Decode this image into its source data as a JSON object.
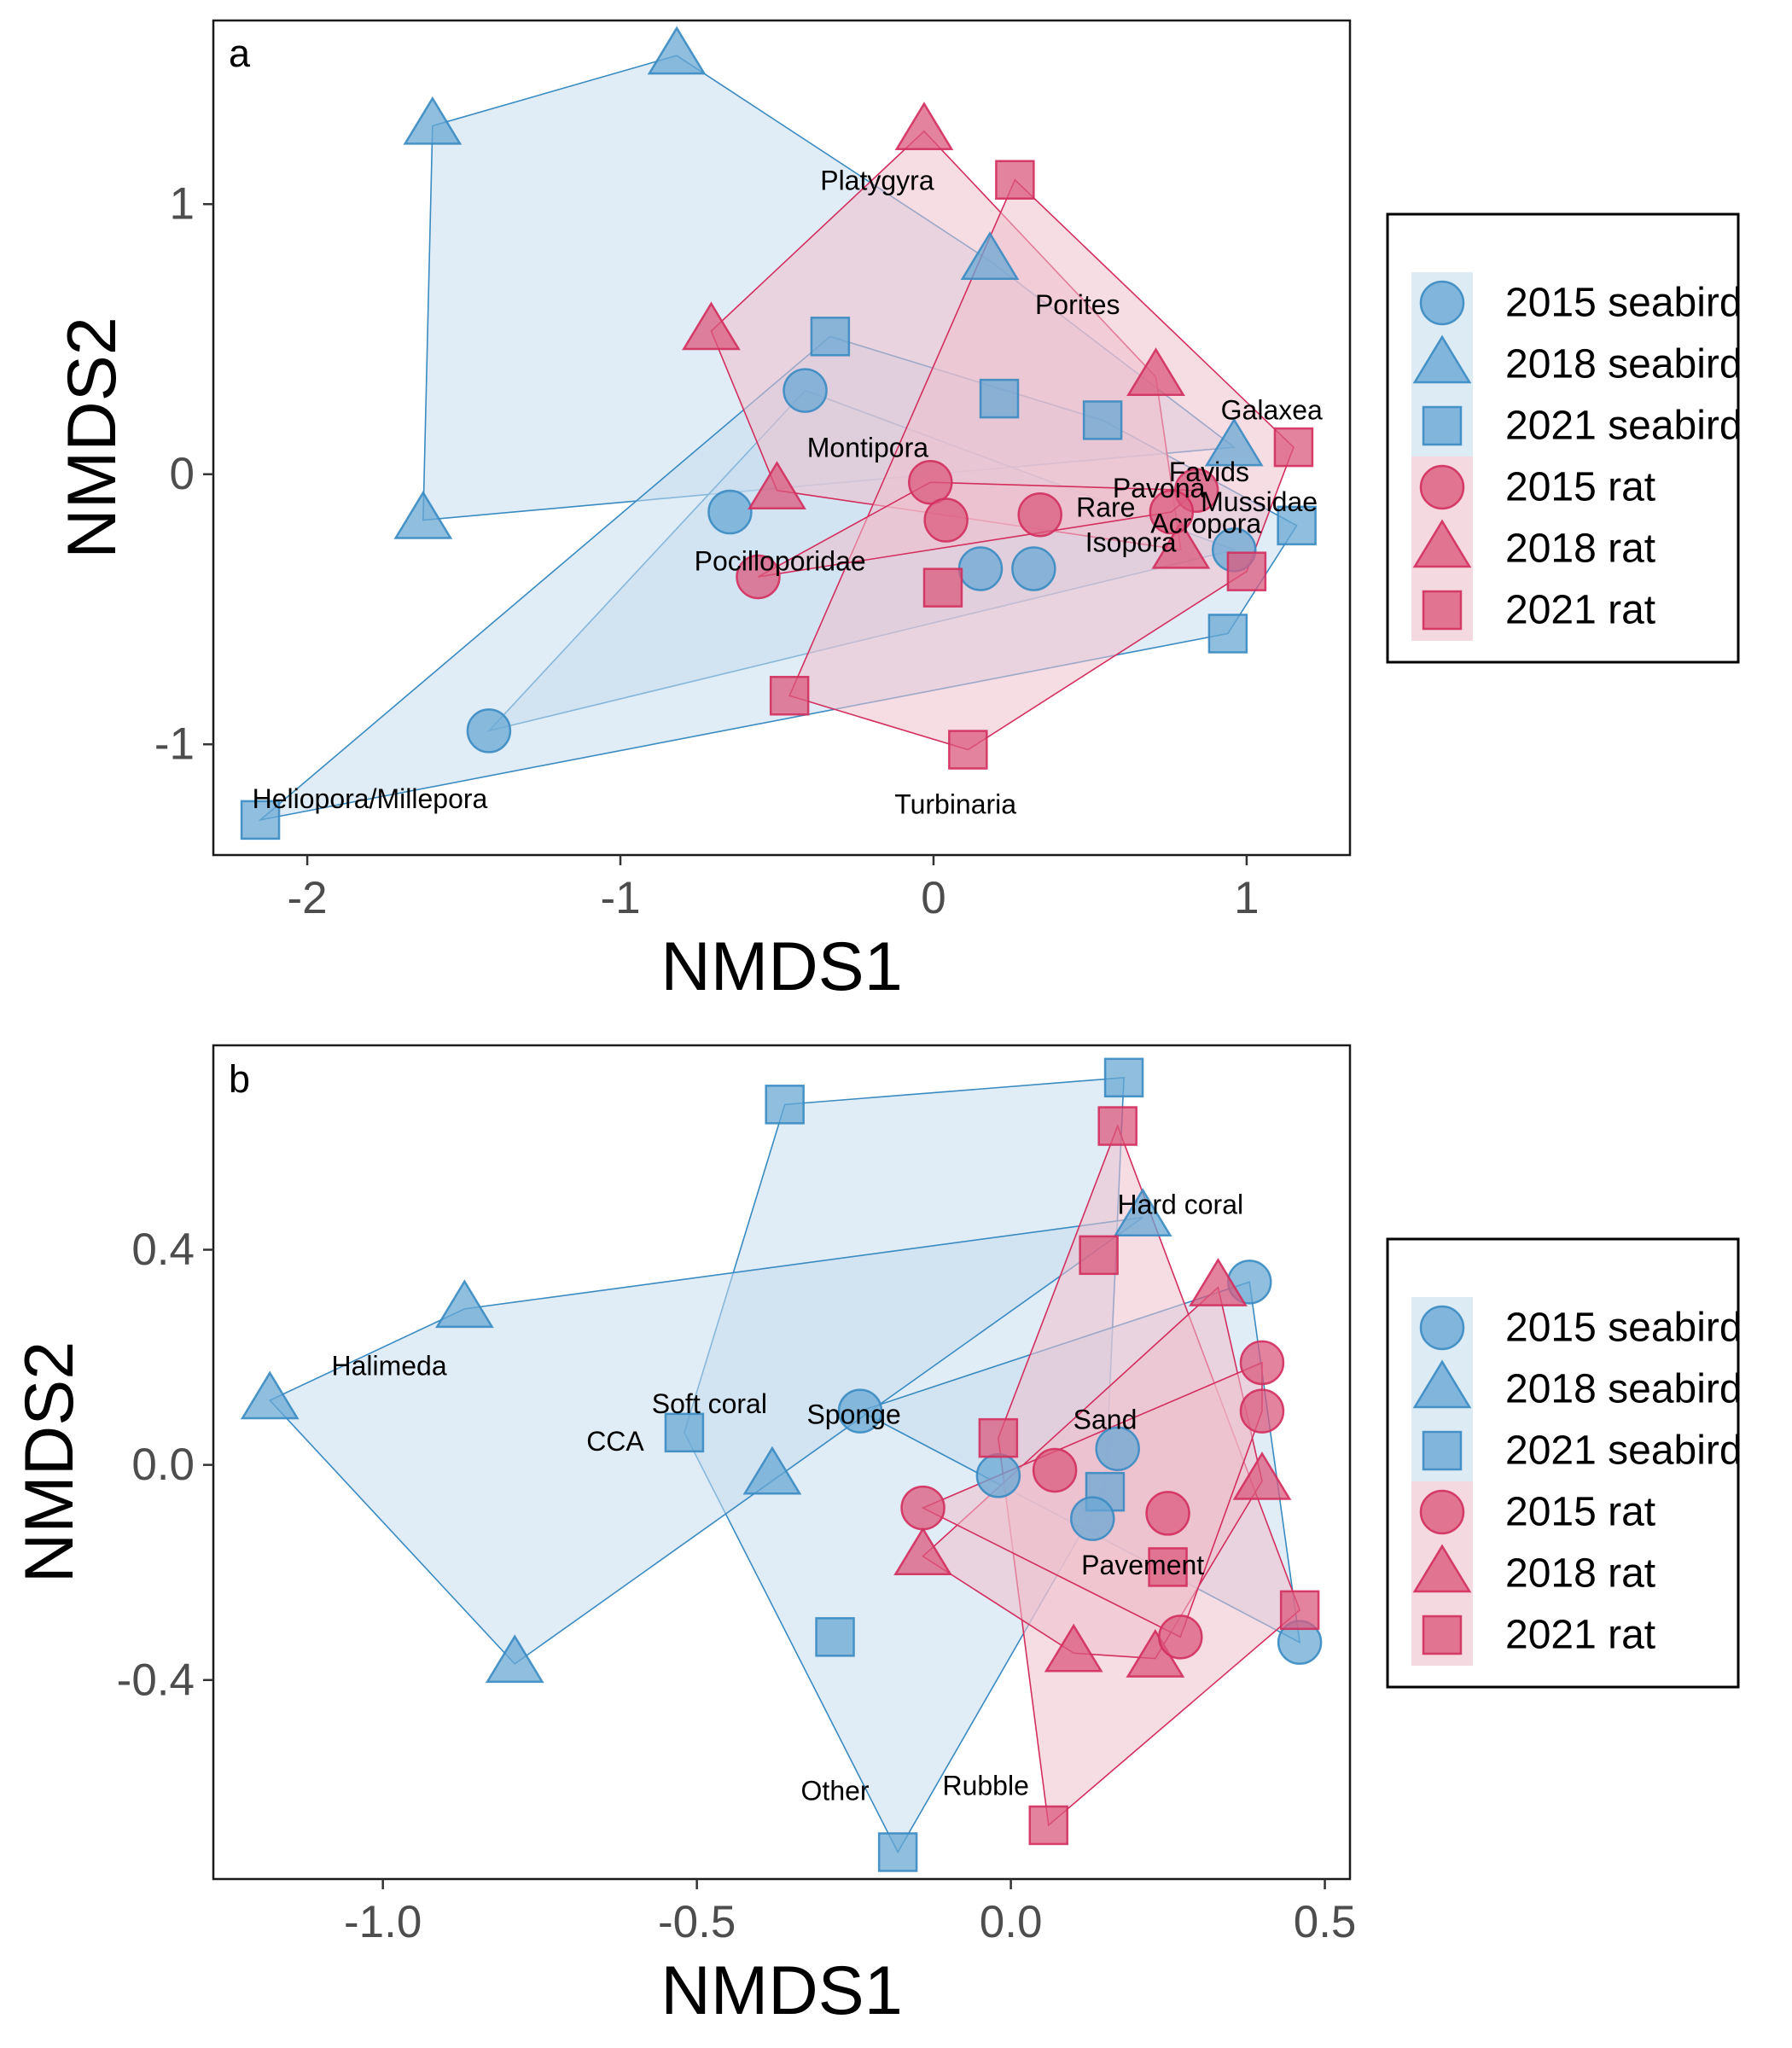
{
  "colors": {
    "seabird": "#3A8BC2",
    "seabird_fill": "#6AA8D4",
    "seabird_hull": "#C6DDEE",
    "rat": "#D32F5E",
    "rat_fill": "#DB5A7D",
    "rat_hull": "#EFBFCC"
  },
  "legend": [
    {
      "label": "2015 seabird",
      "group": "seabird",
      "shape": "circle"
    },
    {
      "label": "2018 seabird",
      "group": "seabird",
      "shape": "triangle"
    },
    {
      "label": "2021 seabird",
      "group": "seabird",
      "shape": "square"
    },
    {
      "label": "2015 rat",
      "group": "rat",
      "shape": "circle"
    },
    {
      "label": "2018 rat",
      "group": "rat",
      "shape": "triangle"
    },
    {
      "label": "2021 rat",
      "group": "rat",
      "shape": "square"
    }
  ],
  "chart_data": [
    {
      "type": "scatter",
      "panel_label": "a",
      "xlabel": "NMDS1",
      "ylabel": "NMDS2",
      "xlim": [
        -2.3,
        1.33
      ],
      "ylim": [
        -1.41,
        1.68
      ],
      "xticks": [
        -2,
        -1,
        0,
        1
      ],
      "xtick_labels": [
        "-2",
        "-1",
        "0",
        "1"
      ],
      "yticks": [
        -1,
        0,
        1
      ],
      "ytick_labels": [
        "-1",
        "0",
        "1"
      ],
      "grid": false,
      "legend_position": "right",
      "hull_order": [
        "2018 seabird",
        "2015 seabird",
        "2021 seabird",
        "2018 rat",
        "2021 rat",
        "2015 rat"
      ],
      "series": [
        {
          "name": "2018 seabird",
          "group": "seabird",
          "shape": "triangle",
          "points": [
            [
              -0.82,
              1.55
            ],
            [
              -1.6,
              1.29
            ],
            [
              0.18,
              0.79
            ],
            [
              0.96,
              0.1
            ],
            [
              -1.63,
              -0.17
            ]
          ]
        },
        {
          "name": "2015 seabird",
          "group": "seabird",
          "shape": "circle",
          "points": [
            [
              -0.41,
              0.31
            ],
            [
              -0.65,
              -0.14
            ],
            [
              0.15,
              -0.35
            ],
            [
              0.32,
              -0.35
            ],
            [
              0.96,
              -0.28
            ],
            [
              -1.42,
              -0.95
            ]
          ]
        },
        {
          "name": "2021 seabird",
          "group": "seabird",
          "shape": "square",
          "points": [
            [
              -0.33,
              0.51
            ],
            [
              0.21,
              0.28
            ],
            [
              0.54,
              0.2
            ],
            [
              1.16,
              -0.19
            ],
            [
              0.94,
              -0.59
            ],
            [
              -2.15,
              -1.28
            ]
          ]
        },
        {
          "name": "2018 rat",
          "group": "rat",
          "shape": "triangle",
          "points": [
            [
              -0.03,
              1.27
            ],
            [
              -0.71,
              0.53
            ],
            [
              0.71,
              0.36
            ],
            [
              -0.5,
              -0.06
            ],
            [
              0.79,
              -0.28
            ]
          ]
        },
        {
          "name": "2021 rat",
          "group": "rat",
          "shape": "square",
          "points": [
            [
              0.26,
              1.09
            ],
            [
              1.15,
              0.1
            ],
            [
              1.0,
              -0.36
            ],
            [
              0.03,
              -0.42
            ],
            [
              -0.46,
              -0.82
            ],
            [
              0.11,
              -1.02
            ]
          ]
        },
        {
          "name": "2015 rat",
          "group": "rat",
          "shape": "circle",
          "points": [
            [
              -0.01,
              -0.03
            ],
            [
              0.84,
              -0.06
            ],
            [
              0.76,
              -0.14
            ],
            [
              0.34,
              -0.15
            ],
            [
              0.04,
              -0.17
            ],
            [
              -0.56,
              -0.38
            ]
          ]
        }
      ],
      "annotations": [
        {
          "text": "Platygyra",
          "x": -0.18,
          "y": 1.08
        },
        {
          "text": "Porites",
          "x": 0.46,
          "y": 0.62
        },
        {
          "text": "Galaxea",
          "x": 1.08,
          "y": 0.23
        },
        {
          "text": "Montipora",
          "x": -0.21,
          "y": 0.09
        },
        {
          "text": "Favids",
          "x": 0.88,
          "y": 0.0
        },
        {
          "text": "Pavona",
          "x": 0.72,
          "y": -0.06
        },
        {
          "text": "Mussidae",
          "x": 1.04,
          "y": -0.11
        },
        {
          "text": "Rare",
          "x": 0.55,
          "y": -0.13
        },
        {
          "text": "Acropora",
          "x": 0.87,
          "y": -0.19
        },
        {
          "text": "Isopora",
          "x": 0.63,
          "y": -0.26
        },
        {
          "text": "Pocilloporidae",
          "x": -0.49,
          "y": -0.33
        },
        {
          "text": "Heliopora/Millepora",
          "x": -1.8,
          "y": -1.21
        },
        {
          "text": "Turbinaria",
          "x": 0.07,
          "y": -1.23
        }
      ]
    },
    {
      "type": "scatter",
      "panel_label": "b",
      "xlabel": "NMDS1",
      "ylabel": "NMDS2",
      "xlim": [
        -1.27,
        0.54
      ],
      "ylim": [
        -0.77,
        0.78
      ],
      "xticks": [
        -1.0,
        -0.5,
        0.0,
        0.5
      ],
      "xtick_labels": [
        "-1.0",
        "-0.5",
        "0.0",
        "0.5"
      ],
      "yticks": [
        -0.4,
        0.0,
        0.4
      ],
      "ytick_labels": [
        "-0.4",
        "0.0",
        "0.4"
      ],
      "grid": false,
      "legend_position": "right",
      "hull_order": [
        "2021 seabird",
        "2018 seabird",
        "2015 seabird",
        "2021 rat",
        "2018 rat",
        "2015 rat"
      ],
      "series": [
        {
          "name": "2021 seabird",
          "group": "seabird",
          "shape": "square",
          "points": [
            [
              0.18,
              0.72
            ],
            [
              -0.36,
              0.67
            ],
            [
              -0.52,
              0.06
            ],
            [
              0.15,
              -0.05
            ],
            [
              -0.28,
              -0.32
            ],
            [
              -0.18,
              -0.72
            ]
          ]
        },
        {
          "name": "2018 seabird",
          "group": "seabird",
          "shape": "triangle",
          "points": [
            [
              0.21,
              0.46
            ],
            [
              -0.87,
              0.29
            ],
            [
              -1.18,
              0.12
            ],
            [
              -0.38,
              -0.02
            ],
            [
              -0.79,
              -0.37
            ]
          ]
        },
        {
          "name": "2015 seabird",
          "group": "seabird",
          "shape": "circle",
          "points": [
            [
              0.38,
              0.34
            ],
            [
              -0.24,
              0.1
            ],
            [
              0.17,
              0.03
            ],
            [
              -0.02,
              -0.02
            ],
            [
              0.13,
              -0.1
            ],
            [
              0.46,
              -0.33
            ]
          ]
        },
        {
          "name": "2021 rat",
          "group": "rat",
          "shape": "square",
          "points": [
            [
              0.17,
              0.63
            ],
            [
              0.14,
              0.39
            ],
            [
              -0.02,
              0.05
            ],
            [
              0.25,
              -0.19
            ],
            [
              0.46,
              -0.27
            ],
            [
              0.06,
              -0.67
            ]
          ]
        },
        {
          "name": "2018 rat",
          "group": "rat",
          "shape": "triangle",
          "points": [
            [
              0.33,
              0.33
            ],
            [
              0.4,
              -0.03
            ],
            [
              -0.14,
              -0.17
            ],
            [
              0.1,
              -0.35
            ],
            [
              0.23,
              -0.36
            ]
          ]
        },
        {
          "name": "2015 rat",
          "group": "rat",
          "shape": "circle",
          "points": [
            [
              0.4,
              0.19
            ],
            [
              0.4,
              0.1
            ],
            [
              0.07,
              -0.01
            ],
            [
              -0.14,
              -0.08
            ],
            [
              0.25,
              -0.09
            ],
            [
              0.27,
              -0.32
            ]
          ]
        }
      ],
      "annotations": [
        {
          "text": "Hard coral",
          "x": 0.27,
          "y": 0.48
        },
        {
          "text": "Halimeda",
          "x": -0.99,
          "y": 0.18
        },
        {
          "text": "Soft coral",
          "x": -0.48,
          "y": 0.11
        },
        {
          "text": "Sponge",
          "x": -0.25,
          "y": 0.09
        },
        {
          "text": "Sand",
          "x": 0.15,
          "y": 0.08
        },
        {
          "text": "CCA",
          "x": -0.63,
          "y": 0.04
        },
        {
          "text": "Pavement",
          "x": 0.21,
          "y": -0.19
        },
        {
          "text": "Rubble",
          "x": -0.04,
          "y": -0.6
        },
        {
          "text": "Other",
          "x": -0.28,
          "y": -0.61
        }
      ]
    }
  ]
}
